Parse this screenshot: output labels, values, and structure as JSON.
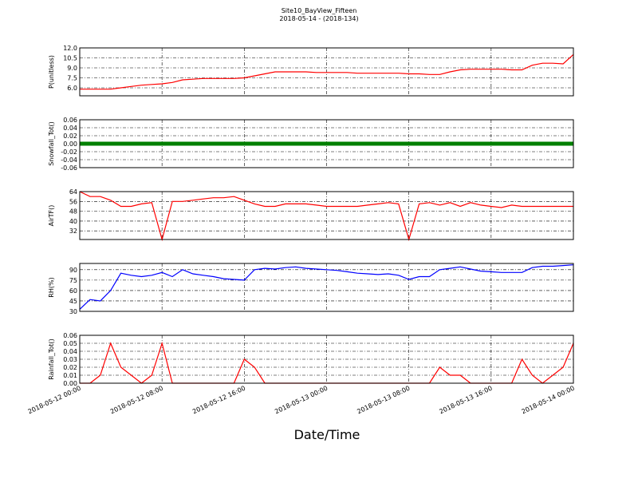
{
  "chart_data": {
    "type": "line",
    "title": "Site10_BayView_Fifteen",
    "subtitle": "2018-05-14 - (2018-134)",
    "xlabel": "Date/Time",
    "grid": true,
    "xlim": [
      "2018-05-12 00:00",
      "2018-05-14 00:00"
    ],
    "xticks": [
      "2018-05-12 00:00",
      "2018-05-12 08:00",
      "2018-05-12 16:00",
      "2018-05-13 00:00",
      "2018-05-13 08:00",
      "2018-05-13 16:00",
      "2018-05-14 00:00"
    ],
    "x": [
      "2018-05-12 00:00",
      "2018-05-12 01:00",
      "2018-05-12 02:00",
      "2018-05-12 03:00",
      "2018-05-12 04:00",
      "2018-05-12 05:00",
      "2018-05-12 06:00",
      "2018-05-12 07:00",
      "2018-05-12 08:00",
      "2018-05-12 09:00",
      "2018-05-12 10:00",
      "2018-05-12 11:00",
      "2018-05-12 12:00",
      "2018-05-12 13:00",
      "2018-05-12 14:00",
      "2018-05-12 15:00",
      "2018-05-12 16:00",
      "2018-05-12 17:00",
      "2018-05-12 18:00",
      "2018-05-12 19:00",
      "2018-05-12 20:00",
      "2018-05-12 21:00",
      "2018-05-12 22:00",
      "2018-05-12 23:00",
      "2018-05-13 00:00",
      "2018-05-13 01:00",
      "2018-05-13 02:00",
      "2018-05-13 03:00",
      "2018-05-13 04:00",
      "2018-05-13 05:00",
      "2018-05-13 06:00",
      "2018-05-13 07:00",
      "2018-05-13 08:00",
      "2018-05-13 09:00",
      "2018-05-13 10:00",
      "2018-05-13 11:00",
      "2018-05-13 12:00",
      "2018-05-13 13:00",
      "2018-05-13 14:00",
      "2018-05-13 15:00",
      "2018-05-13 16:00",
      "2018-05-13 17:00",
      "2018-05-13 18:00",
      "2018-05-13 19:00",
      "2018-05-13 20:00",
      "2018-05-13 21:00",
      "2018-05-13 22:00",
      "2018-05-13 23:00",
      "2018-05-14 00:00"
    ],
    "panels": [
      {
        "ylabel": "P(unitless)",
        "color": "#ff0000",
        "ylim": [
          4.8,
          12
        ],
        "yticks": [
          {
            "value": 6,
            "label": "6.0"
          },
          {
            "value": 7.5,
            "label": "7.5"
          },
          {
            "value": 9,
            "label": "9.0"
          },
          {
            "value": 10.5,
            "label": "10.5"
          },
          {
            "value": 12,
            "label": "12.0"
          }
        ],
        "values": [
          5.8,
          5.8,
          5.8,
          5.8,
          6.0,
          6.2,
          6.4,
          6.5,
          6.6,
          6.8,
          7.2,
          7.3,
          7.4,
          7.4,
          7.4,
          7.4,
          7.5,
          7.8,
          8.1,
          8.4,
          8.4,
          8.4,
          8.4,
          8.3,
          8.3,
          8.3,
          8.3,
          8.2,
          8.2,
          8.2,
          8.2,
          8.2,
          8.1,
          8.1,
          8.0,
          8.0,
          8.4,
          8.7,
          8.8,
          8.8,
          8.8,
          8.8,
          8.7,
          8.7,
          9.4,
          9.7,
          9.7,
          9.6,
          11.0
        ]
      },
      {
        "ylabel": "Snowfall_Tot()",
        "color": "#008000",
        "ylim": [
          -0.06,
          0.06
        ],
        "yticks": [
          {
            "value": -0.06,
            "label": "-0.06"
          },
          {
            "value": -0.04,
            "label": "-0.04"
          },
          {
            "value": -0.02,
            "label": "-0.02"
          },
          {
            "value": 0,
            "label": "0.00"
          },
          0.02,
          0.04,
          0.06
        ],
        "values": [
          0,
          0,
          0,
          0,
          0,
          0,
          0,
          0,
          0,
          0,
          0,
          0,
          0,
          0,
          0,
          0,
          0,
          0,
          0,
          0,
          0,
          0,
          0,
          0,
          0,
          0,
          0,
          0,
          0,
          0,
          0,
          0,
          0,
          0,
          0,
          0,
          0,
          0,
          0,
          0,
          0,
          0,
          0,
          0,
          0,
          0,
          0,
          0,
          0
        ]
      },
      {
        "ylabel": "AirTF()",
        "color": "#ff0000",
        "ylim": [
          25,
          64
        ],
        "yticks": [
          32,
          40,
          48,
          56,
          64
        ],
        "values": [
          64,
          60,
          60,
          57,
          52,
          52,
          54,
          55,
          25,
          56,
          56,
          57,
          58,
          59,
          59,
          60,
          57,
          54,
          52,
          52,
          54,
          54,
          54,
          53,
          52,
          52,
          52,
          52,
          53,
          54,
          55,
          54,
          25,
          54,
          55,
          53,
          55,
          52,
          55,
          53,
          52,
          51,
          53,
          52,
          52,
          52,
          52,
          52,
          52
        ]
      },
      {
        "ylabel": "RH(%)",
        "color": "#0000ff",
        "ylim": [
          30,
          99
        ],
        "yticks": [
          30,
          45,
          60,
          75,
          90
        ],
        "values": [
          33,
          47,
          45,
          60,
          85,
          82,
          80,
          82,
          86,
          80,
          90,
          84,
          82,
          80,
          77,
          76,
          75,
          90,
          92,
          91,
          93,
          94,
          92,
          91,
          90,
          89,
          87,
          85,
          84,
          83,
          84,
          82,
          76,
          80,
          80,
          90,
          92,
          94,
          91,
          88,
          87,
          86,
          86,
          86,
          93,
          95,
          95,
          96,
          97
        ]
      },
      {
        "ylabel": "Rainfall_Tot()",
        "color": "#ff0000",
        "ylim": [
          0,
          0.06
        ],
        "yticks": [
          {
            "value": 0,
            "label": "0.00"
          },
          0.01,
          0.02,
          0.03,
          0.04,
          0.05,
          0.06
        ],
        "values": [
          0,
          0,
          0.01,
          0.05,
          0.02,
          0.01,
          0,
          0.01,
          0.05,
          0,
          0,
          0,
          0,
          0,
          0,
          0,
          0.03,
          0.02,
          0,
          0,
          0,
          0,
          0,
          0,
          0,
          0,
          0,
          0,
          0,
          0,
          0,
          0,
          0,
          0,
          0,
          0.02,
          0.01,
          0.01,
          0,
          0,
          0,
          0,
          0,
          0.03,
          0.01,
          0,
          0.01,
          0.02,
          0.05
        ]
      }
    ]
  }
}
